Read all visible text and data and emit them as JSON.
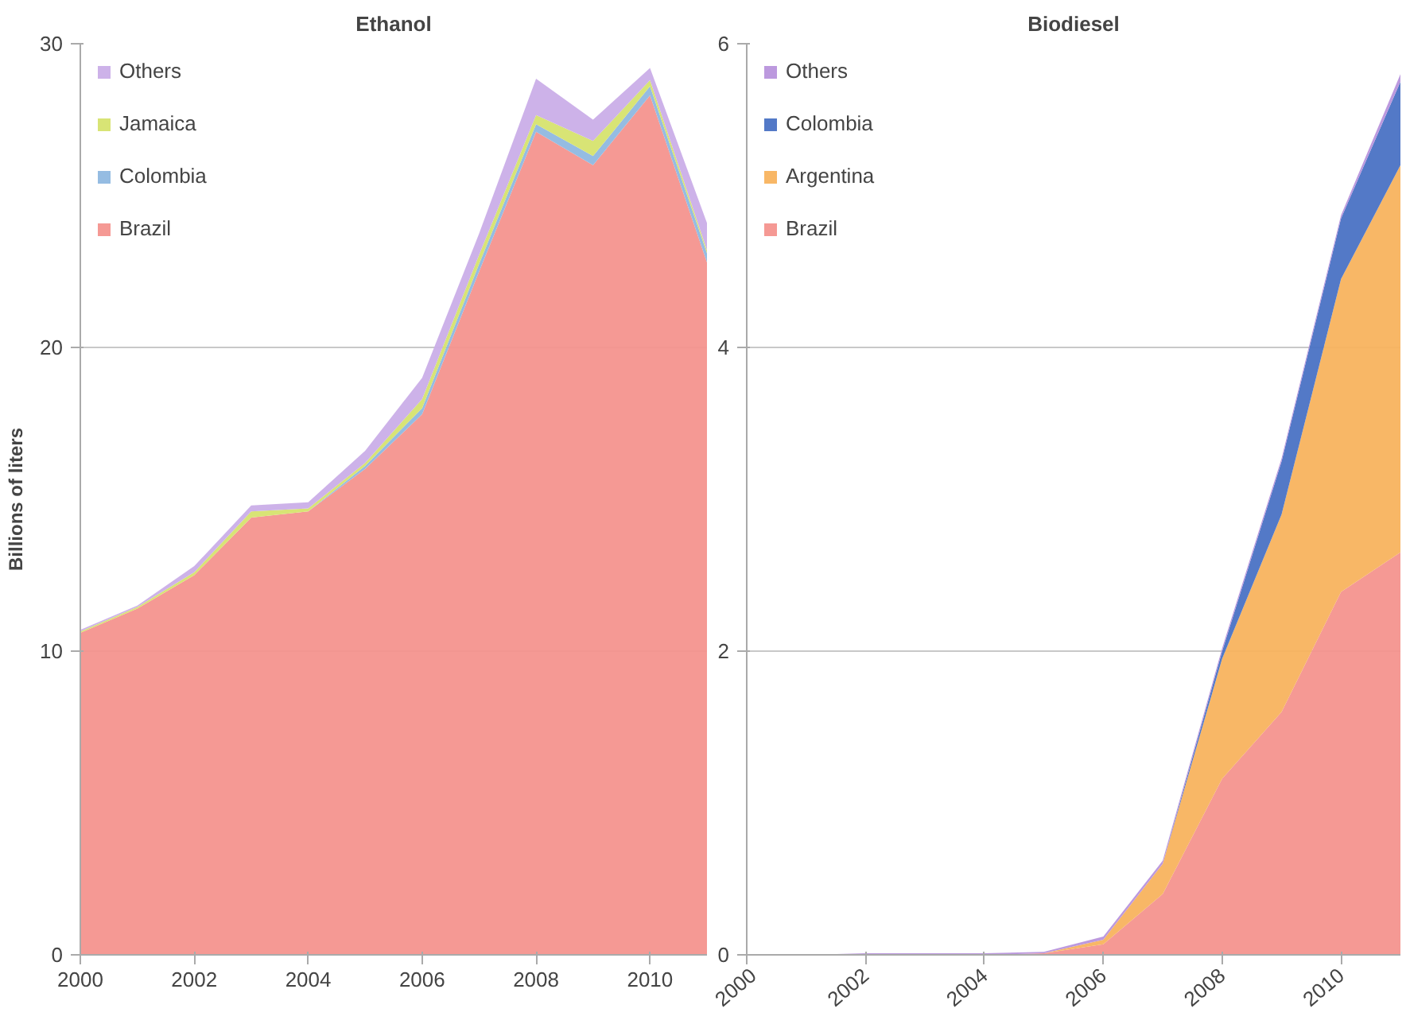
{
  "chart_data": [
    {
      "type": "area",
      "stacked": true,
      "title": "Ethanol",
      "ylabel": "Billions of liters",
      "x": [
        2000,
        2001,
        2002,
        2003,
        2004,
        2005,
        2006,
        2007,
        2008,
        2009,
        2010,
        2011
      ],
      "xlim": [
        2000,
        2011
      ],
      "xticks": [
        2000,
        2002,
        2004,
        2006,
        2008,
        2010
      ],
      "ylim": [
        0,
        30
      ],
      "yticks": [
        0,
        10,
        20,
        30
      ],
      "grid": "y",
      "legend": "top left",
      "series": [
        {
          "name": "Brazil",
          "color": "#f4948e",
          "values": [
            10.6,
            11.4,
            12.5,
            14.4,
            14.6,
            16.0,
            17.8,
            22.5,
            27.1,
            26.0,
            28.3,
            22.8
          ]
        },
        {
          "name": "Colombia",
          "color": "#8fb8e0",
          "values": [
            0,
            0,
            0,
            0,
            0,
            0.1,
            0.2,
            0.25,
            0.25,
            0.3,
            0.3,
            0.3
          ]
        },
        {
          "name": "Jamaica",
          "color": "#d6e36e",
          "values": [
            0.05,
            0.05,
            0.1,
            0.2,
            0.1,
            0.1,
            0.3,
            0.3,
            0.3,
            0.5,
            0.2,
            0.1
          ]
        },
        {
          "name": "Others",
          "color": "#caaee8",
          "values": [
            0.05,
            0.05,
            0.2,
            0.2,
            0.2,
            0.4,
            0.7,
            0.7,
            1.2,
            0.7,
            0.4,
            0.9
          ]
        }
      ]
    },
    {
      "type": "area",
      "stacked": true,
      "title": "Biodiesel",
      "x": [
        2000,
        2001,
        2002,
        2003,
        2004,
        2005,
        2006,
        2007,
        2008,
        2009,
        2010,
        2011
      ],
      "xlim": [
        2000,
        2011
      ],
      "xticks": [
        2000,
        2002,
        2004,
        2006,
        2008,
        2010
      ],
      "ylim": [
        0,
        6
      ],
      "yticks": [
        0,
        2,
        4,
        6
      ],
      "grid": "y",
      "legend": "top left",
      "series": [
        {
          "name": "Brazil",
          "color": "#f4948e",
          "values": [
            0,
            0,
            0,
            0,
            0,
            0.01,
            0.07,
            0.4,
            1.16,
            1.6,
            2.39,
            2.65
          ]
        },
        {
          "name": "Argentina",
          "color": "#f8b35e",
          "values": [
            0,
            0,
            0,
            0,
            0,
            0,
            0.03,
            0.2,
            0.79,
            1.3,
            2.06,
            2.55
          ]
        },
        {
          "name": "Colombia",
          "color": "#4a72c4",
          "values": [
            0,
            0,
            0,
            0,
            0,
            0,
            0,
            0,
            0.05,
            0.35,
            0.4,
            0.55
          ]
        },
        {
          "name": "Others",
          "color": "#b894dc",
          "values": [
            0,
            0,
            0.01,
            0.01,
            0.01,
            0.01,
            0.02,
            0.02,
            0.02,
            0.02,
            0.02,
            0.05
          ]
        }
      ]
    }
  ]
}
